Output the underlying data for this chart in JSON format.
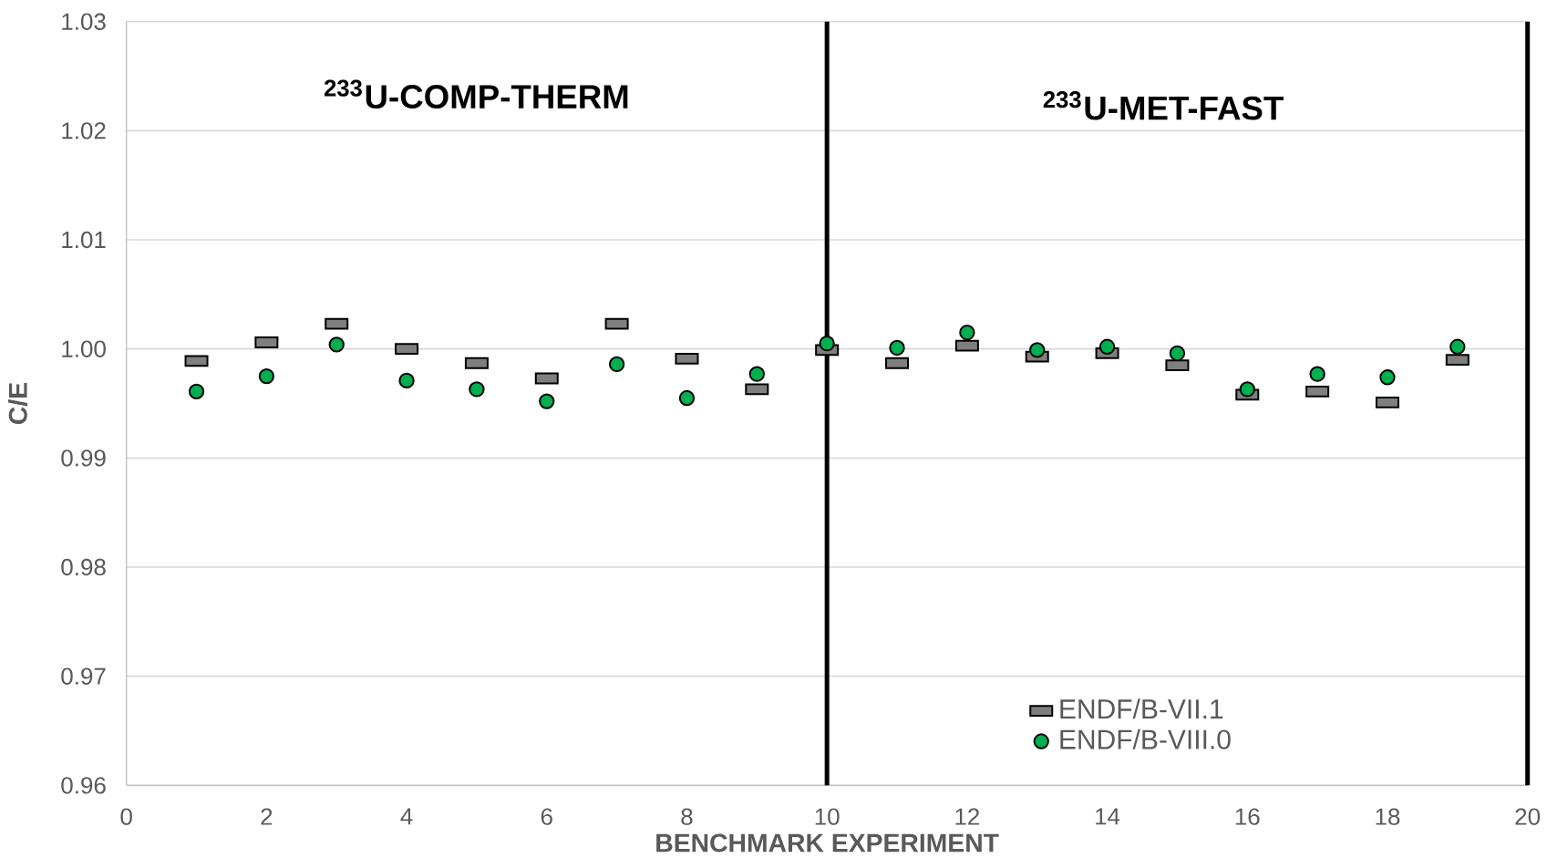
{
  "chart_data": {
    "type": "scatter",
    "xlabel": "BENCHMARK EXPERIMENT",
    "ylabel": "C/E",
    "x": [
      1,
      2,
      3,
      4,
      5,
      6,
      7,
      8,
      9,
      10,
      11,
      12,
      13,
      14,
      15,
      16,
      17,
      18,
      19
    ],
    "series": [
      {
        "name": "ENDF/B-VII.1",
        "color": "#7f7f7f",
        "marker": "square",
        "values": [
          0.9989,
          1.0006,
          1.0023,
          1.0,
          0.9987,
          0.9973,
          1.0023,
          0.9991,
          0.9963,
          0.9999,
          0.9987,
          1.0003,
          0.9993,
          0.9996,
          0.9985,
          0.9958,
          0.9961,
          0.9951,
          0.999
        ]
      },
      {
        "name": "ENDF/B-VIII.0",
        "color": "#00b050",
        "marker": "circle",
        "values": [
          0.9961,
          0.9975,
          1.0004,
          0.9971,
          0.9963,
          0.9952,
          0.9986,
          0.9955,
          0.9977,
          1.0005,
          1.0001,
          1.0015,
          0.9999,
          1.0002,
          0.9996,
          0.9963,
          0.9977,
          0.9974,
          1.0002
        ]
      }
    ],
    "xlim": [
      0,
      20
    ],
    "xticks": [
      0,
      2,
      4,
      6,
      8,
      10,
      12,
      14,
      16,
      18,
      20
    ],
    "ylim": [
      0.96,
      1.03
    ],
    "yticks": [
      0.96,
      0.97,
      0.98,
      0.99,
      {
        "value": 1.0,
        "label": "1.00"
      },
      1.01,
      1.02,
      1.03
    ],
    "ref_lines": [
      {
        "axis": "x",
        "value": 10,
        "color": "#000000"
      },
      {
        "axis": "x",
        "value": 20,
        "color": "#000000"
      }
    ],
    "annotations": [
      "$^{233}$U-COMP-THERM",
      "$^{233}$U-MET-FAST"
    ],
    "grid": "y",
    "legend": "bottom right"
  }
}
